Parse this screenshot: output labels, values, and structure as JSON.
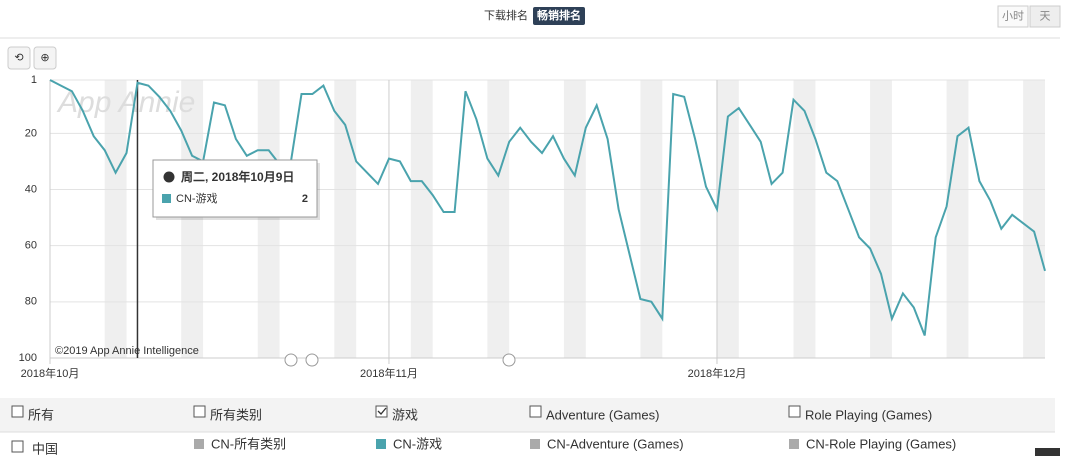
{
  "controls": {
    "rank_types": [
      "下载排名",
      "畅销排名"
    ],
    "granularity": [
      "小时",
      "天"
    ]
  },
  "chart_data": {
    "type": "line",
    "watermark": "App Annie",
    "copyright": "©2019 App Annie Intelligence",
    "series": [
      {
        "name": "CN-游戏",
        "color": "#4aa3ad",
        "values": [
          1,
          3,
          5,
          12,
          21,
          26,
          34,
          27,
          2,
          3,
          7,
          12,
          19,
          28,
          30,
          9,
          10,
          22,
          28,
          26,
          26,
          31,
          31,
          6,
          6,
          3,
          12,
          17,
          30,
          34,
          38,
          29,
          30,
          37,
          37,
          42,
          48,
          48,
          5,
          15,
          29,
          35,
          23,
          18,
          23,
          27,
          21,
          29,
          35,
          18,
          10,
          22,
          47,
          63,
          79,
          80,
          86,
          6,
          7,
          22,
          39,
          47,
          14,
          11,
          17,
          23,
          38,
          34,
          8,
          12,
          22,
          34,
          37,
          47,
          57,
          61,
          70,
          86,
          77,
          82,
          92,
          57,
          46,
          21,
          18,
          37,
          44,
          54,
          49,
          52,
          55,
          69
        ]
      }
    ],
    "ylim": [
      1,
      100
    ],
    "y_inverted": true,
    "yticks": [
      1,
      20,
      40,
      60,
      80,
      100
    ],
    "grid": true,
    "xtick_labels": [
      "2018年10月",
      "2018年11月",
      "2018年12月"
    ],
    "xtick_index": [
      0,
      31,
      61
    ],
    "tooltip": {
      "title": "周二, 2018年10月9日",
      "index": 8
    }
  },
  "legend": {
    "row1": [
      {
        "label": "所有",
        "checked": false
      },
      {
        "label": "所有类别",
        "checked": false
      },
      {
        "label": "游戏",
        "checked": true
      },
      {
        "label": "Adventure (Games)",
        "checked": false
      },
      {
        "label": "Role Playing (Games)",
        "checked": false
      }
    ],
    "country": "中国",
    "items": [
      {
        "label": "CN-所有类别",
        "color": "#aaaaaa"
      },
      {
        "label": null,
        "color": null
      },
      {
        "label": "CN-Adventure (Games)",
        "color": "#aaaaaa"
      },
      {
        "label": "CN-Role Playing (Games)",
        "color": "#aaaaaa"
      }
    ]
  }
}
